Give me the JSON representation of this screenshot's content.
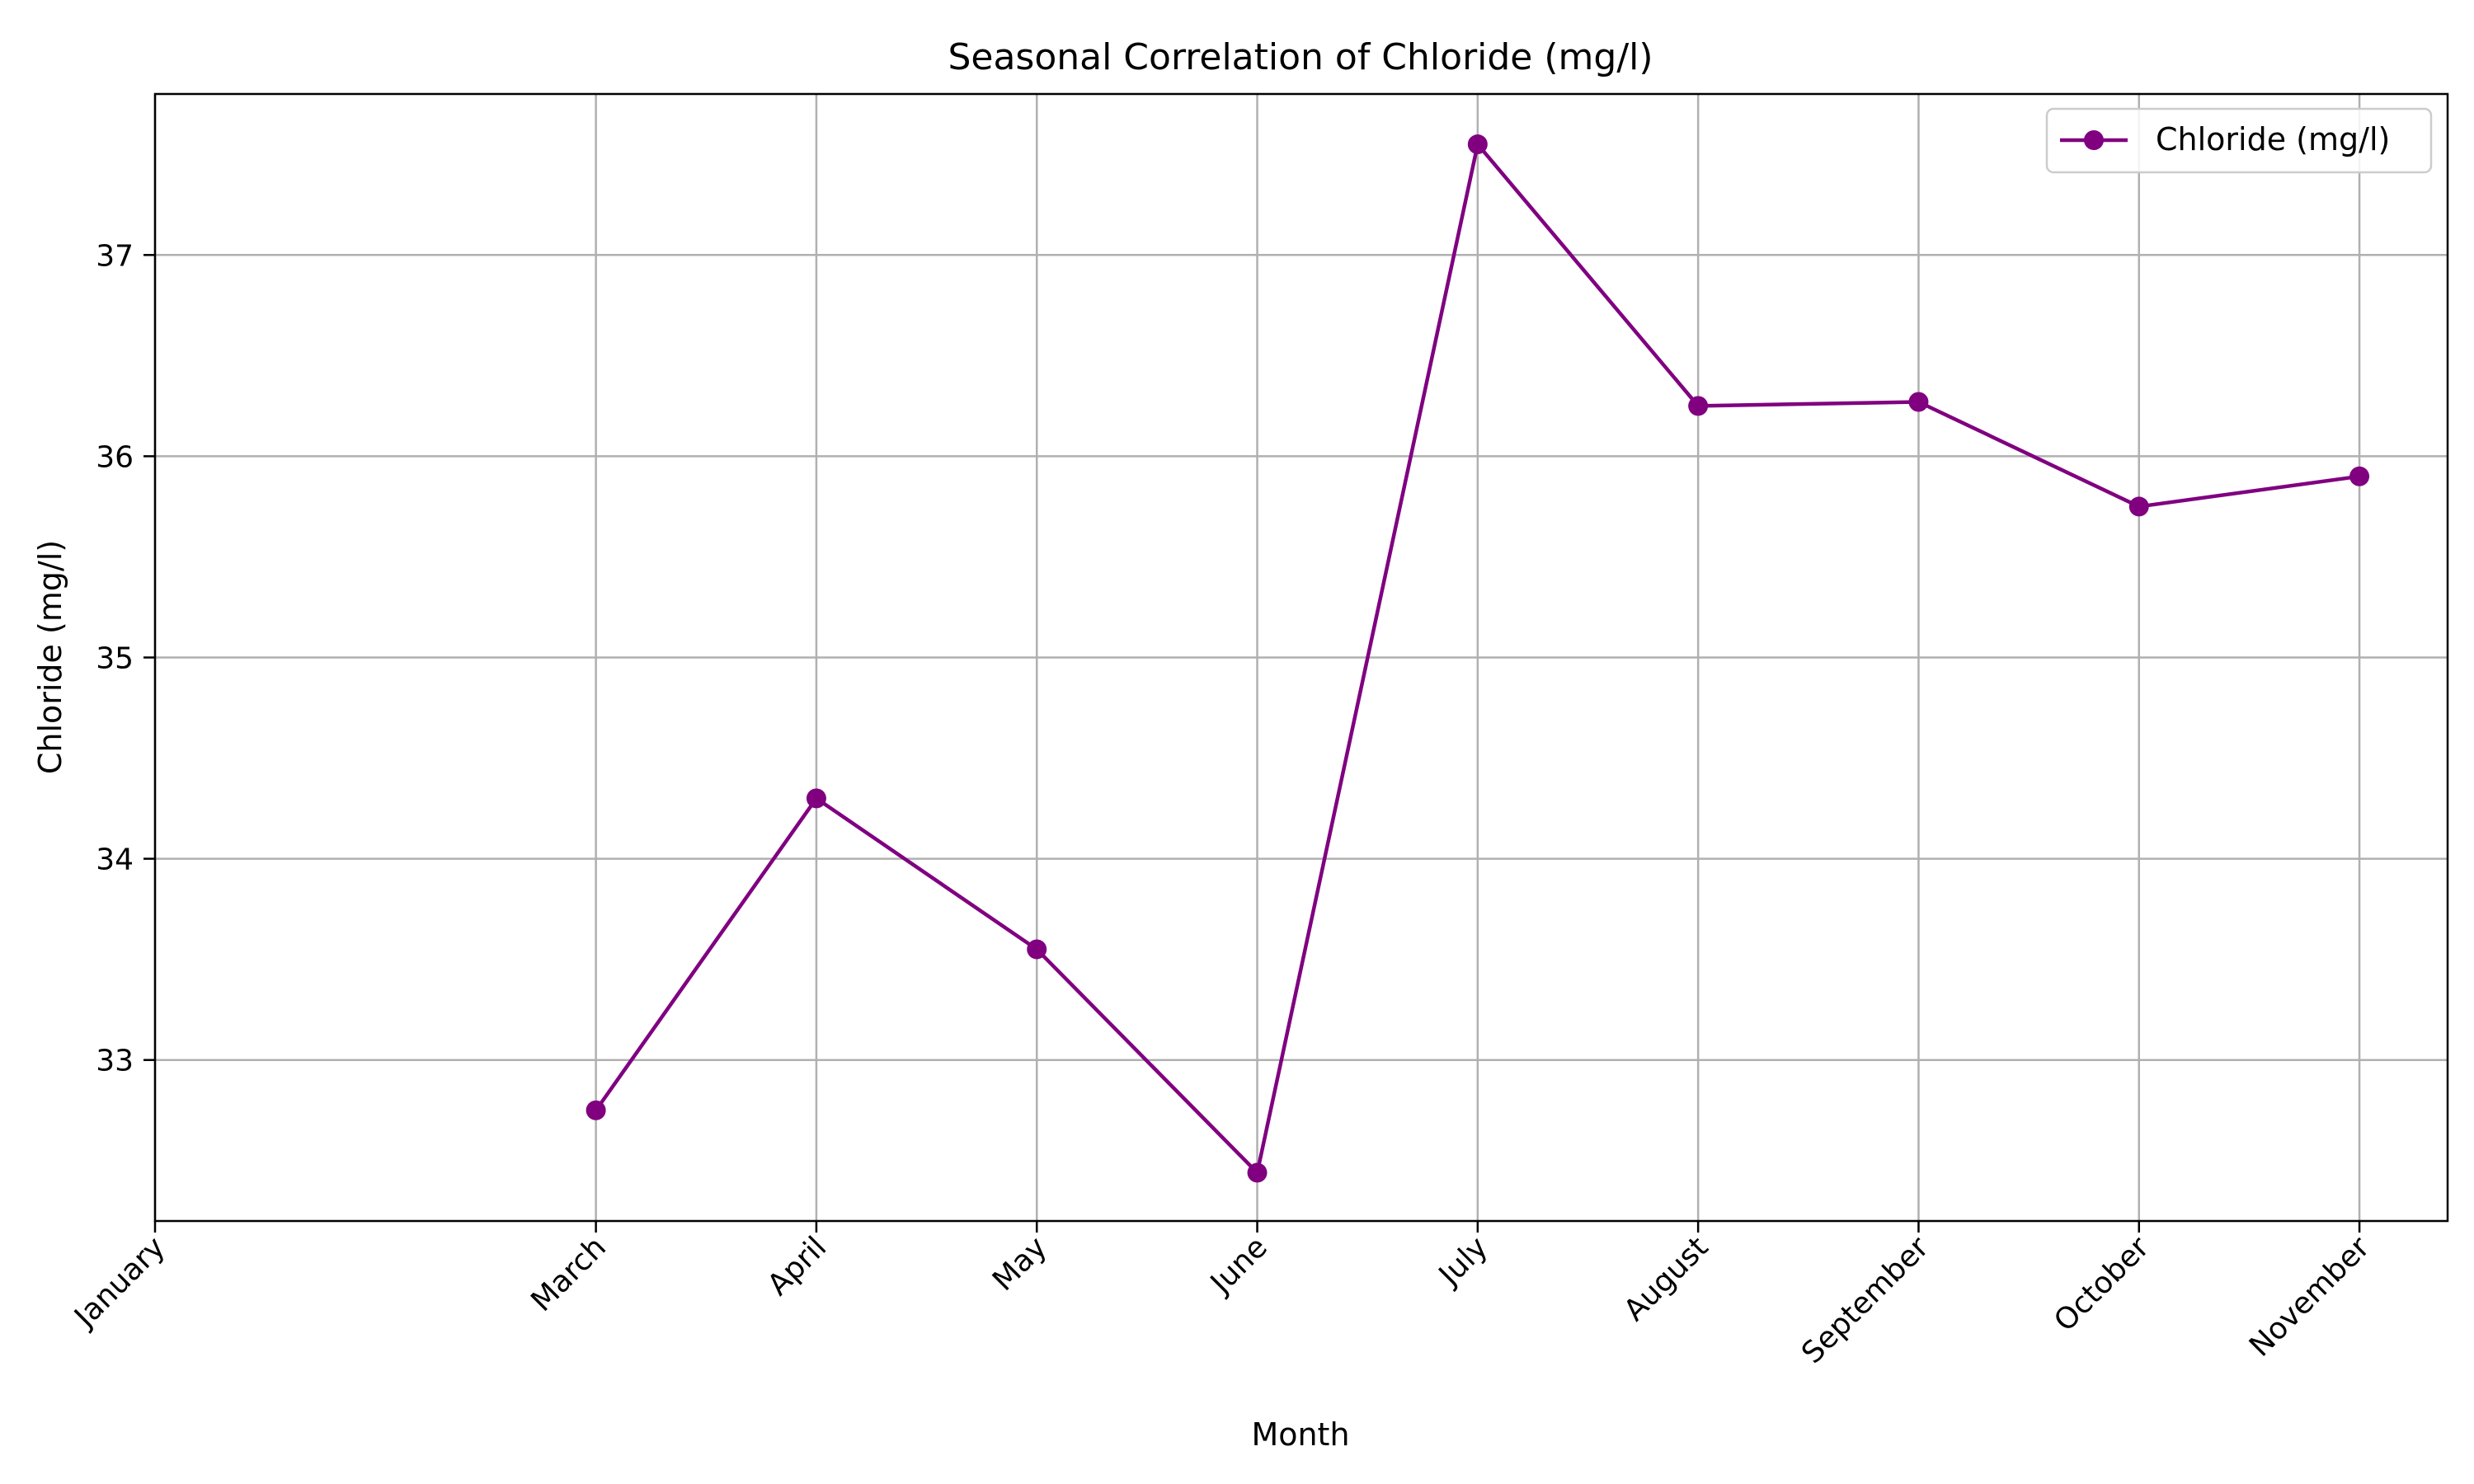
{
  "chart_data": {
    "type": "line",
    "title": "Seasonal Correlation of Chloride (mg/l)",
    "xlabel": "Month",
    "ylabel": "Chloride (mg/l)",
    "x_ticks": [
      {
        "label": "January",
        "index": 0
      },
      {
        "label": "March",
        "index": 2
      },
      {
        "label": "April",
        "index": 3
      },
      {
        "label": "May",
        "index": 4
      },
      {
        "label": "June",
        "index": 5
      },
      {
        "label": "July",
        "index": 6
      },
      {
        "label": "August",
        "index": 7
      },
      {
        "label": "September",
        "index": 8
      },
      {
        "label": "October",
        "index": 9
      },
      {
        "label": "November",
        "index": 10
      }
    ],
    "xlim": [
      0,
      10.4
    ],
    "ylim": [
      32.2,
      37.8
    ],
    "y_ticks": [
      33,
      34,
      35,
      36,
      37
    ],
    "grid": true,
    "legend_position": "upper-right",
    "series": [
      {
        "name": "Chloride (mg/l)",
        "color": "#800080",
        "marker": "circle",
        "points": [
          {
            "month": "March",
            "index": 2,
            "value": 32.75
          },
          {
            "month": "April",
            "index": 3,
            "value": 34.3
          },
          {
            "month": "May",
            "index": 4,
            "value": 33.55
          },
          {
            "month": "June",
            "index": 5,
            "value": 32.44
          },
          {
            "month": "July",
            "index": 6,
            "value": 37.55
          },
          {
            "month": "August",
            "index": 7,
            "value": 36.25
          },
          {
            "month": "September",
            "index": 8,
            "value": 36.27
          },
          {
            "month": "October",
            "index": 9,
            "value": 35.75
          },
          {
            "month": "November",
            "index": 10,
            "value": 35.9
          }
        ]
      }
    ]
  }
}
